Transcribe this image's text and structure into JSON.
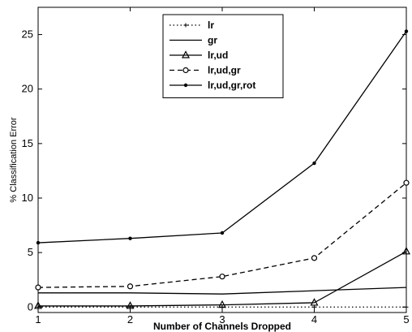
{
  "chart_data": {
    "type": "line",
    "xlabel": "Number of Channels Dropped",
    "ylabel": "% Classification Error",
    "x": [
      1,
      2,
      3,
      4,
      5
    ],
    "xlim": [
      1,
      5
    ],
    "ylim": [
      -0.5,
      27.5
    ],
    "xticks": [
      1,
      2,
      3,
      4,
      5
    ],
    "yticks": [
      0,
      5,
      10,
      15,
      20,
      25
    ],
    "grid": false,
    "legend_position": "top-center",
    "series": [
      {
        "name": "lr",
        "values": [
          0.0,
          0.0,
          0.0,
          0.0,
          0.0
        ],
        "line": "dotted",
        "marker": "plus",
        "color": "#000000"
      },
      {
        "name": "gr",
        "values": [
          1.3,
          1.3,
          1.2,
          1.5,
          1.8
        ],
        "line": "solid",
        "marker": "none",
        "color": "#000000"
      },
      {
        "name": "lr,ud",
        "values": [
          0.1,
          0.1,
          0.2,
          0.4,
          5.1
        ],
        "line": "solid",
        "marker": "triangle",
        "color": "#000000"
      },
      {
        "name": "lr,ud,gr",
        "values": [
          1.8,
          1.9,
          2.8,
          4.5,
          11.4
        ],
        "line": "dashed",
        "marker": "circle-open",
        "color": "#000000"
      },
      {
        "name": "lr,ud,gr,rot",
        "values": [
          5.9,
          6.3,
          6.8,
          13.2,
          25.3
        ],
        "line": "solid",
        "marker": "dot",
        "color": "#000000"
      }
    ]
  }
}
